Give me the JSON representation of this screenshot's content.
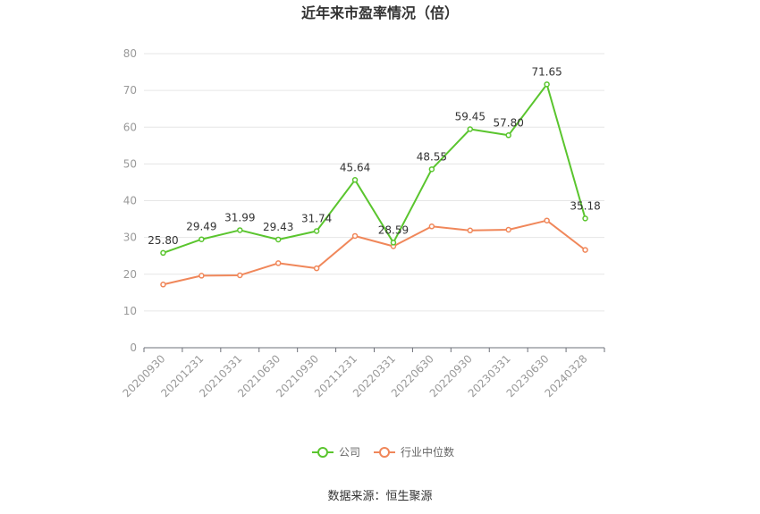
{
  "chart_data": {
    "type": "line",
    "title": "近年来市盈率情况（倍）",
    "categories": [
      "20200930",
      "20201231",
      "20210331",
      "20210630",
      "20210930",
      "20211231",
      "20220331",
      "20220630",
      "20220930",
      "20230331",
      "20230630",
      "20240328"
    ],
    "ylim": [
      0,
      80
    ],
    "yticks": [
      0,
      10,
      20,
      30,
      40,
      50,
      60,
      70,
      80
    ],
    "grid": true,
    "legend_position": "bottom",
    "series": [
      {
        "name": "公司",
        "color": "#5ac52e",
        "values": [
          25.8,
          29.49,
          31.99,
          29.43,
          31.74,
          45.64,
          28.59,
          48.55,
          59.45,
          57.8,
          71.65,
          35.18
        ],
        "labels": [
          "25.80",
          "29.49",
          "31.99",
          "29.43",
          "31.74",
          "45.64",
          "28.59",
          "48.55",
          "59.45",
          "57.80",
          "71.65",
          "35.18"
        ]
      },
      {
        "name": "行业中位数",
        "color": "#f0875a",
        "values": [
          17.2,
          19.6,
          19.7,
          23.0,
          21.6,
          30.4,
          27.6,
          33.0,
          31.9,
          32.1,
          34.6,
          26.6
        ]
      }
    ]
  },
  "source": "数据来源：恒生聚源"
}
